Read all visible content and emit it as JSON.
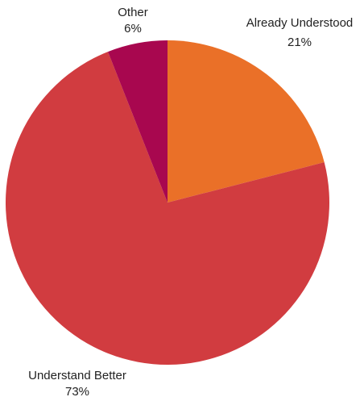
{
  "chart_data": {
    "type": "pie",
    "start_angle_deg": 0,
    "direction": "clockwise",
    "slices": [
      {
        "label": "Already Understood",
        "value": 21,
        "value_label": "21%",
        "color": "#EA7028"
      },
      {
        "label": "Understand Better",
        "value": 73,
        "value_label": "73%",
        "color": "#D13C40"
      },
      {
        "label": "Other",
        "value": 6,
        "value_label": "6%",
        "color": "#A8074F"
      }
    ]
  }
}
